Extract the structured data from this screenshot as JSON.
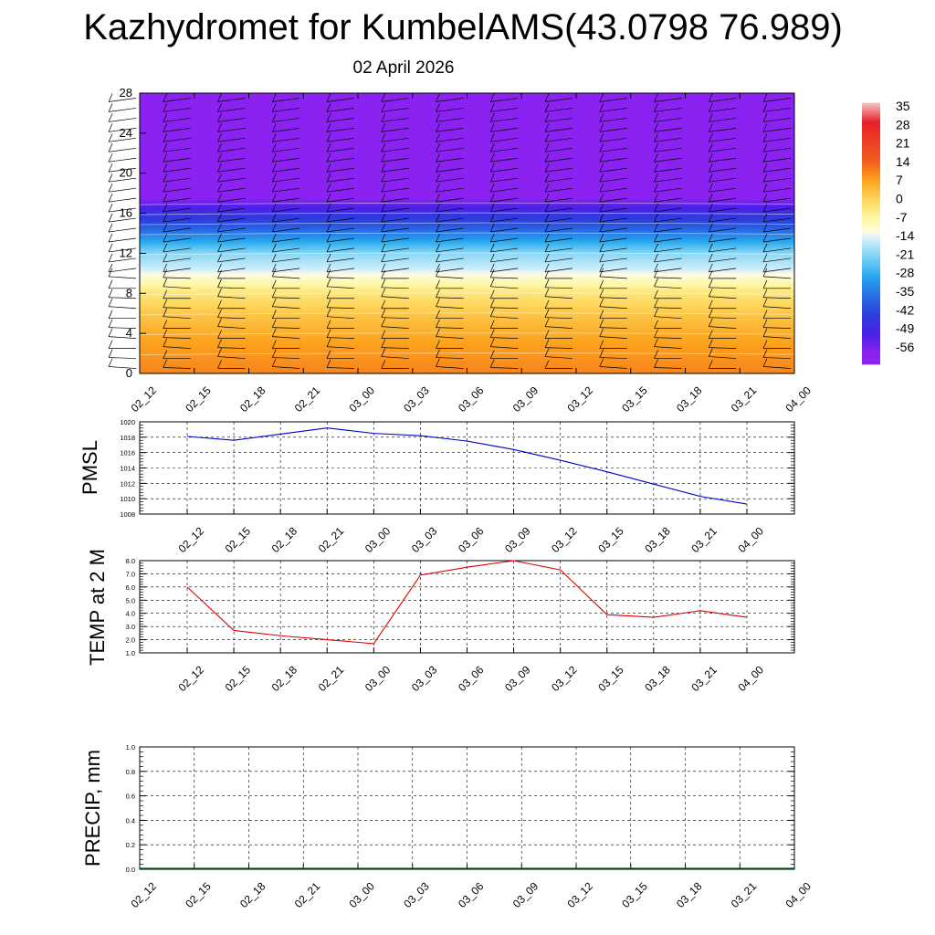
{
  "title": "Kazhydromet for KumbelAMS(43.0798 76.989)",
  "subtitle": "02 April 2026",
  "time_labels": [
    "02_12",
    "02_15",
    "02_18",
    "02_21",
    "03_00",
    "03_03",
    "03_06",
    "03_09",
    "03_12",
    "03_15",
    "03_18",
    "03_21",
    "04_00"
  ],
  "chart_data": [
    {
      "type": "heatmap",
      "name": "Temperature cross-section with wind barbs",
      "x": [
        "02_12",
        "02_15",
        "02_18",
        "02_21",
        "03_00",
        "03_03",
        "03_06",
        "03_09",
        "03_12",
        "03_15",
        "03_18",
        "03_21",
        "04_00"
      ],
      "ylim": [
        0,
        28
      ],
      "yticks": [
        0,
        4,
        8,
        12,
        16,
        20,
        24,
        28
      ],
      "color_scale": {
        "labels": [
          "35",
          "28",
          "21",
          "14",
          "7",
          "0",
          "-7",
          "-14",
          "-21",
          "-28",
          "-35",
          "-42",
          "-49",
          "-56"
        ],
        "stops": [
          {
            "value": 35,
            "color": "#f4c4c4"
          },
          {
            "value": 28,
            "color": "#e8202a"
          },
          {
            "value": 14,
            "color": "#f25c1e"
          },
          {
            "value": 7,
            "color": "#fca11c"
          },
          {
            "value": 0,
            "color": "#fdd65a"
          },
          {
            "value": -7,
            "color": "#fdf7a4"
          },
          {
            "value": -12,
            "color": "#fffbe0"
          },
          {
            "value": -14,
            "color": "#d9f1fb"
          },
          {
            "value": -21,
            "color": "#7dd3f5"
          },
          {
            "value": -28,
            "color": "#27a9ee"
          },
          {
            "value": -35,
            "color": "#2870e6"
          },
          {
            "value": -42,
            "color": "#2c3fdc"
          },
          {
            "value": -49,
            "color": "#4a21e8"
          },
          {
            "value": -56,
            "color": "#8b22f2"
          }
        ]
      },
      "vertical_profile": [
        {
          "height": 0,
          "temp": 10
        },
        {
          "height": 3,
          "temp": 7
        },
        {
          "height": 6,
          "temp": 2
        },
        {
          "height": 8,
          "temp": -3
        },
        {
          "height": 9.5,
          "temp": -10
        },
        {
          "height": 10.5,
          "temp": -15
        },
        {
          "height": 12,
          "temp": -20
        },
        {
          "height": 13.5,
          "temp": -30
        },
        {
          "height": 15,
          "temp": -40
        },
        {
          "height": 16.3,
          "temp": -47
        },
        {
          "height": 17.5,
          "temp": -56
        },
        {
          "height": 28,
          "temp": -57
        }
      ],
      "barb_levels": [
        0.5,
        1.5,
        2.5,
        3.5,
        4.5,
        5.5,
        6.5,
        7.5,
        8.5,
        9.5,
        10.5,
        11.5,
        12.5,
        13.5,
        14.5,
        15.5,
        16.5,
        17.5,
        18.5,
        19.5,
        20.5,
        21.5,
        22.5,
        23.5,
        24.5,
        25.5,
        26.5,
        27.5
      ]
    },
    {
      "type": "line",
      "ylabel": "PMSL",
      "x": [
        "02_12",
        "02_15",
        "02_18",
        "02_21",
        "03_00",
        "03_03",
        "03_06",
        "03_09",
        "03_12",
        "03_15",
        "03_18",
        "03_21",
        "04_00"
      ],
      "values": [
        1018.1,
        1017.6,
        1018.4,
        1019.2,
        1018.5,
        1018.2,
        1017.5,
        1016.4,
        1015.0,
        1013.5,
        1011.9,
        1010.3,
        1009.3
      ],
      "ylim": [
        1008,
        1020
      ],
      "yticks": [
        "1008",
        "1010",
        "1012",
        "1014",
        "1016",
        "1018",
        "1020"
      ],
      "color": "#0000cc"
    },
    {
      "type": "line",
      "ylabel": "TEMP at 2 M",
      "x": [
        "02_12",
        "02_15",
        "02_18",
        "02_21",
        "03_00",
        "03_03",
        "03_06",
        "03_09",
        "03_12",
        "03_15",
        "03_18",
        "03_21",
        "04_00"
      ],
      "values": [
        6.0,
        2.7,
        2.3,
        2.0,
        1.7,
        6.9,
        7.5,
        8.0,
        7.3,
        3.9,
        3.7,
        4.2,
        3.7
      ],
      "ylim": [
        1.0,
        8.0
      ],
      "yticks": [
        "1.0",
        "2.0",
        "3.0",
        "4.0",
        "5.0",
        "6.0",
        "7.0",
        "8.0"
      ],
      "color": "#dd0000"
    },
    {
      "type": "line",
      "ylabel": "PRECIP, mm",
      "x": [
        "02_12",
        "02_15",
        "02_18",
        "02_21",
        "03_00",
        "03_03",
        "03_06",
        "03_09",
        "03_12",
        "03_15",
        "03_18",
        "03_21",
        "04_00"
      ],
      "values": [
        0,
        0,
        0,
        0,
        0,
        0,
        0,
        0,
        0,
        0,
        0,
        0,
        0
      ],
      "ylim": [
        0.0,
        1.0
      ],
      "yticks": [
        "0.0",
        "0.2",
        "0.4",
        "0.6",
        "0.8",
        "1.0"
      ],
      "color": "#006600"
    }
  ]
}
